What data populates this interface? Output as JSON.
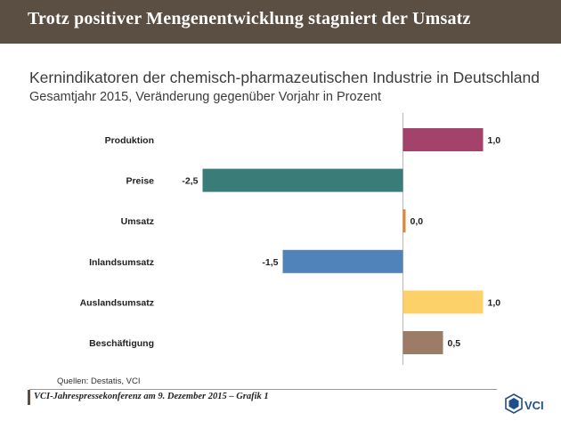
{
  "header": {
    "title": "Trotz positiver Mengenentwicklung stagniert der Umsatz"
  },
  "chart_data": {
    "type": "bar",
    "orientation": "horizontal",
    "title": "Kernindikatoren der chemisch-pharmazeutischen Industrie in Deutschland",
    "subtitle": "Gesamtjahr 2015, Veränderung gegenüber Vorjahr in Prozent",
    "categories": [
      "Produktion",
      "Preise",
      "Umsatz",
      "Inlandsumsatz",
      "Auslandsumsatz",
      "Beschäftigung"
    ],
    "values": [
      1.0,
      -2.5,
      0.0,
      -1.5,
      1.0,
      0.5
    ],
    "value_labels": [
      "1,0",
      "-2,5",
      "0,0",
      "-1,5",
      "1,0",
      "0,5"
    ],
    "colors": [
      "#a3426b",
      "#3a7c78",
      "#e0873a",
      "#4f83b9",
      "#fcd169",
      "#9c7c66"
    ],
    "xlim": [
      -3.5,
      1.5
    ],
    "grid": false,
    "legend": "none"
  },
  "source": "Quellen: Destatis, VCI",
  "footer": {
    "text": "VCI-Jahrespressekonferenz am 9. Dezember 2015 – Grafik 1"
  },
  "logo": {
    "text": "VCI"
  }
}
